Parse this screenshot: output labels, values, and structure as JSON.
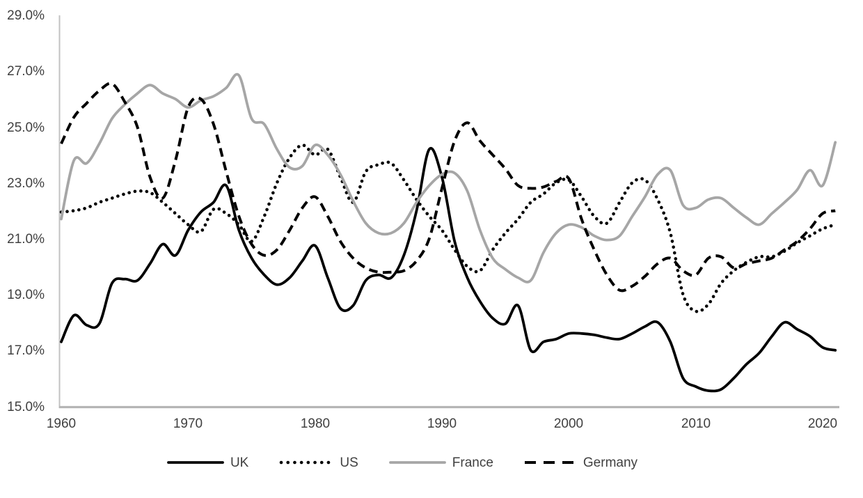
{
  "chart_data": {
    "type": "line",
    "title": "",
    "xlabel": "",
    "ylabel": "",
    "x_ticks": [
      "1960",
      "1970",
      "1980",
      "1990",
      "2000",
      "2010",
      "2020"
    ],
    "y_ticks": [
      "29.0%",
      "27.0%",
      "25.0%",
      "23.0%",
      "21.0%",
      "19.0%",
      "17.0%",
      "15.0%"
    ],
    "x_range": [
      1960,
      2021
    ],
    "ylim": [
      15.0,
      29.0
    ],
    "y_unit": "percent",
    "grid": false,
    "legend_position": "bottom",
    "axis_color": "#b5b5b5",
    "label_color": "#404040",
    "series": [
      {
        "name": "UK",
        "style": "solid",
        "color": "#000000",
        "values": [
          17.3,
          18.25,
          17.9,
          17.95,
          19.4,
          19.55,
          19.5,
          20.1,
          20.8,
          20.4,
          21.3,
          21.95,
          22.3,
          22.9,
          21.3,
          20.3,
          19.7,
          19.35,
          19.6,
          20.2,
          20.75,
          19.6,
          18.5,
          18.6,
          19.5,
          19.7,
          19.6,
          20.4,
          22.0,
          24.2,
          23.2,
          20.9,
          19.6,
          18.75,
          18.15,
          17.95,
          18.6,
          17.0,
          17.3,
          17.4,
          17.6,
          17.6,
          17.55,
          17.45,
          17.4,
          17.6,
          17.85,
          18.0,
          17.3,
          16.0,
          15.7,
          15.55,
          15.6,
          16.0,
          16.5,
          16.9,
          17.5,
          18.0,
          17.75,
          17.5,
          17.1,
          17.0
        ]
      },
      {
        "name": "US",
        "style": "dotted",
        "color": "#000000",
        "values": [
          21.95,
          22.0,
          22.1,
          22.3,
          22.45,
          22.6,
          22.7,
          22.65,
          22.3,
          21.9,
          21.5,
          21.25,
          22.05,
          21.9,
          21.5,
          20.9,
          21.8,
          23.0,
          23.9,
          24.35,
          24.0,
          24.2,
          23.2,
          22.3,
          23.4,
          23.65,
          23.7,
          23.1,
          22.4,
          21.8,
          21.3,
          20.6,
          20.0,
          19.85,
          20.6,
          21.2,
          21.7,
          22.3,
          22.6,
          23.0,
          23.1,
          22.5,
          21.8,
          21.55,
          22.3,
          23.0,
          23.1,
          22.4,
          21.2,
          19.0,
          18.4,
          18.65,
          19.4,
          19.85,
          20.15,
          20.35,
          20.35,
          20.55,
          20.85,
          21.1,
          21.35,
          21.5
        ]
      },
      {
        "name": "France",
        "style": "solid",
        "color": "#a6a6a6",
        "values": [
          21.7,
          23.8,
          23.7,
          24.4,
          25.3,
          25.8,
          26.2,
          26.5,
          26.2,
          26.0,
          25.7,
          25.95,
          26.1,
          26.4,
          26.85,
          25.3,
          25.1,
          24.2,
          23.55,
          23.6,
          24.35,
          24.0,
          23.3,
          22.35,
          21.55,
          21.2,
          21.2,
          21.55,
          22.3,
          22.9,
          23.3,
          23.35,
          22.7,
          21.3,
          20.3,
          19.9,
          19.6,
          19.5,
          20.5,
          21.2,
          21.5,
          21.4,
          21.1,
          20.95,
          21.1,
          21.8,
          22.5,
          23.3,
          23.45,
          22.2,
          22.1,
          22.4,
          22.45,
          22.1,
          21.75,
          21.5,
          21.9,
          22.3,
          22.75,
          23.45,
          22.9,
          24.45
        ]
      },
      {
        "name": "Germany",
        "style": "dashed",
        "color": "#000000",
        "values": [
          24.4,
          25.35,
          25.85,
          26.3,
          26.55,
          25.9,
          25.0,
          23.2,
          22.45,
          23.8,
          25.7,
          26.0,
          25.1,
          23.4,
          21.8,
          20.8,
          20.4,
          20.6,
          21.3,
          22.1,
          22.5,
          21.8,
          20.9,
          20.3,
          19.95,
          19.8,
          19.8,
          19.85,
          20.2,
          21.0,
          22.8,
          24.5,
          25.15,
          24.5,
          24.0,
          23.5,
          22.9,
          22.8,
          22.85,
          23.05,
          23.15,
          21.7,
          20.6,
          19.7,
          19.15,
          19.3,
          19.65,
          20.1,
          20.3,
          19.85,
          19.7,
          20.3,
          20.35,
          19.95,
          20.1,
          20.2,
          20.3,
          20.6,
          20.9,
          21.35,
          21.9,
          22.0
        ]
      }
    ]
  }
}
